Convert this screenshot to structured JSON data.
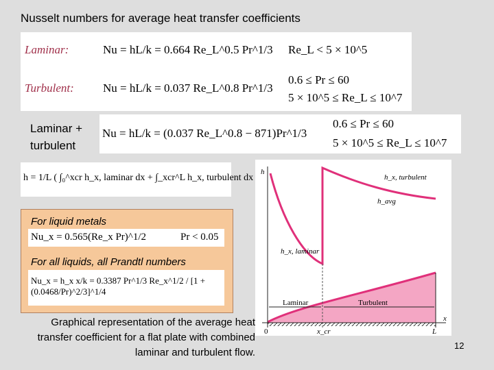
{
  "title": "Nusselt numbers for average heat transfer coefficients",
  "laminar": {
    "label": "Laminar:",
    "formula": "Nu = hL/k = 0.664 Re_L^0.5 Pr^1/3",
    "condition": "Re_L < 5 × 10^5"
  },
  "turbulent": {
    "label": "Turbulent:",
    "formula": "Nu = hL/k = 0.037 Re_L^0.8 Pr^1/3",
    "conditions": [
      "0.6 ≤ Pr ≤ 60",
      "5 × 10^5 ≤ Re_L ≤ 10^7"
    ]
  },
  "combined": {
    "label": "Laminar + turbulent",
    "formula": "Nu = hL/k = (0.037 Re_L^0.8 − 871)Pr^1/3",
    "conditions": [
      "0.6 ≤ Pr ≤ 60",
      "5 × 10^5 ≤ Re_L ≤ 10^7"
    ]
  },
  "average": {
    "formula": "h = 1/L ( ∫₀^xcr h_x, laminar dx + ∫_xcr^L h_x, turbulent dx )"
  },
  "liquid_metals": {
    "heading": "For liquid metals",
    "formula": "Nu_x = 0.565(Re_x Pr)^1/2",
    "condition": "Pr < 0.05"
  },
  "all_liquids": {
    "heading": "For all liquids, all Prandtl numbers",
    "formula": "Nu_x = h_x x/k = 0.3387 Pr^1/3 Re_x^1/2 / [1 + (0.0468/Pr)^2/3]^1/4"
  },
  "figure": {
    "y_axis": "h",
    "x_axis": "x",
    "origin": "0",
    "x_cr": "x_cr",
    "length": "L",
    "h_turbulent": "h_x, turbulent",
    "h_avg": "h_avg",
    "h_laminar": "h_x, laminar",
    "region_laminar": "Laminar",
    "region_turbulent": "Turbulent"
  },
  "caption": "Graphical representation of the average heat transfer coefficient for a flat plate with combined laminar and turbulent flow.",
  "page_number": "12"
}
